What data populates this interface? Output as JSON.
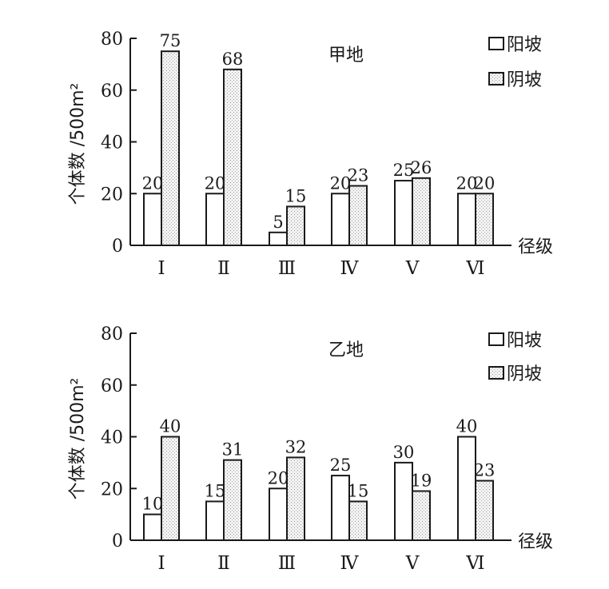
{
  "legend": {
    "sunny_label": "阳坡",
    "shady_label": "阴坡"
  },
  "chart_data": [
    {
      "type": "bar",
      "title": "甲地",
      "ylabel": "个体数 /500m²",
      "xlabel": "径级",
      "ylim": [
        0,
        80
      ],
      "yticks": [
        "0",
        "20",
        "40",
        "60",
        "80"
      ],
      "categories": [
        "Ⅰ",
        "Ⅱ",
        "Ⅲ",
        "Ⅳ",
        "Ⅴ",
        "Ⅵ"
      ],
      "series": [
        {
          "name": "阳坡",
          "values": [
            20,
            20,
            5,
            20,
            25,
            20
          ]
        },
        {
          "name": "阴坡",
          "values": [
            75,
            68,
            15,
            23,
            26,
            20
          ]
        }
      ],
      "legend_position": "top-right",
      "grid": false
    },
    {
      "type": "bar",
      "title": "乙地",
      "ylabel": "个体数 /500m²",
      "xlabel": "径级",
      "ylim": [
        0,
        80
      ],
      "yticks": [
        "0",
        "20",
        "40",
        "60",
        "80"
      ],
      "categories": [
        "Ⅰ",
        "Ⅱ",
        "Ⅲ",
        "Ⅳ",
        "Ⅴ",
        "Ⅵ"
      ],
      "series": [
        {
          "name": "阳坡",
          "values": [
            10,
            15,
            20,
            25,
            30,
            40
          ]
        },
        {
          "name": "阴坡",
          "values": [
            40,
            31,
            32,
            15,
            19,
            23
          ]
        }
      ],
      "legend_position": "top-right",
      "grid": false
    }
  ]
}
